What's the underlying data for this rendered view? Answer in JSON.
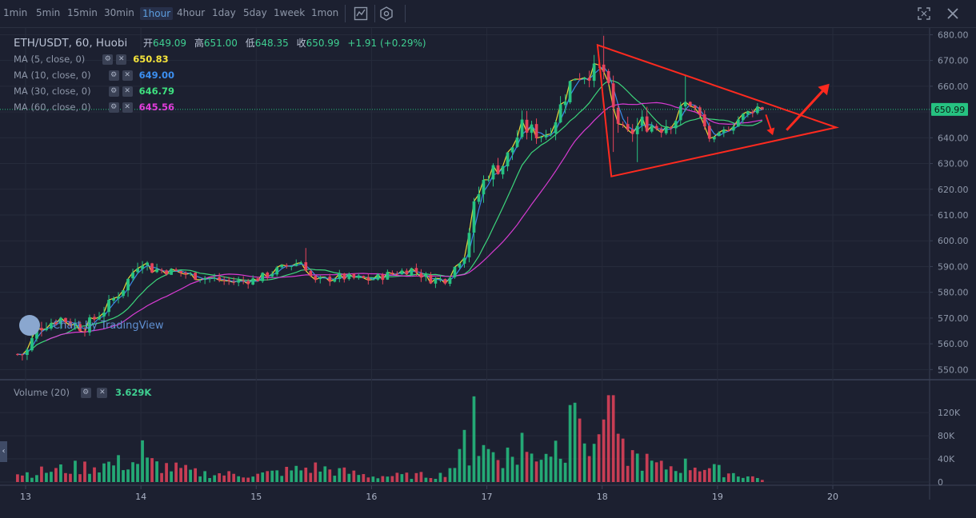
{
  "toolbar": {
    "timeframes": [
      "1min",
      "5min",
      "15min",
      "30min",
      "1hour",
      "4hour",
      "1day",
      "5day",
      "1week",
      "1mon"
    ],
    "active_timeframe": "1hour",
    "icons": [
      "indicator-icon",
      "settings-icon",
      "fullscreen-icon",
      "close-icon"
    ]
  },
  "legend": {
    "symbol": "ETH/USDT, 60, Huobi",
    "open_label": "开",
    "open": "649.09",
    "high_label": "高",
    "high": "651.00",
    "low_label": "低",
    "low": "648.35",
    "close_label": "收",
    "close": "650.99",
    "change": "+1.91 (+0.29%)"
  },
  "ma": [
    {
      "label": "MA (5, close, 0)",
      "value": "650.83",
      "color": "#f5e43b"
    },
    {
      "label": "MA (10, close, 0)",
      "value": "649.00",
      "color": "#3c8ff0"
    },
    {
      "label": "MA (30, close, 0)",
      "value": "646.79",
      "color": "#3ee07f"
    },
    {
      "label": "MA (60, close, 0)",
      "value": "645.56",
      "color": "#e23ddb"
    }
  ],
  "volume_legend": {
    "label": "Volume (20)",
    "value": "3.629K"
  },
  "watermark": "Chart by TradingView",
  "price_tag": "650.99",
  "colors": {
    "up": "#26c281",
    "down": "#e5435b",
    "background": "#1c2030",
    "annotation": "#ff2a1f"
  },
  "chart_data": {
    "type": "candlestick",
    "price_axis": {
      "ticks": [
        680,
        670,
        660,
        650,
        640,
        630,
        620,
        610,
        600,
        590,
        580,
        570,
        560,
        550
      ],
      "ylim": [
        547,
        682
      ]
    },
    "volume_axis": {
      "ticks": [
        "120K",
        "80K",
        "40K",
        "0"
      ],
      "values": [
        120000,
        80000,
        40000,
        0
      ],
      "ylim": [
        0,
        145000
      ]
    },
    "x_ticks": [
      "13",
      "14",
      "15",
      "16",
      "17",
      "18",
      "19",
      "20"
    ],
    "x_tick_days": [
      13,
      14,
      15,
      16,
      17,
      18,
      19,
      20
    ],
    "x_range": [
      13,
      21.1
    ],
    "last_price": 650.99,
    "price_path": [
      {
        "x": 13.0,
        "y": 556
      },
      {
        "x": 13.1,
        "y": 566
      },
      {
        "x": 13.3,
        "y": 570
      },
      {
        "x": 13.5,
        "y": 566
      },
      {
        "x": 13.7,
        "y": 574
      },
      {
        "x": 13.85,
        "y": 582
      },
      {
        "x": 14.0,
        "y": 593
      },
      {
        "x": 14.1,
        "y": 589
      },
      {
        "x": 14.3,
        "y": 588
      },
      {
        "x": 14.5,
        "y": 586
      },
      {
        "x": 14.8,
        "y": 584
      },
      {
        "x": 15.0,
        "y": 585
      },
      {
        "x": 15.25,
        "y": 590
      },
      {
        "x": 15.4,
        "y": 592
      },
      {
        "x": 15.5,
        "y": 584
      },
      {
        "x": 15.7,
        "y": 586
      },
      {
        "x": 16.0,
        "y": 585
      },
      {
        "x": 16.15,
        "y": 587
      },
      {
        "x": 16.35,
        "y": 589
      },
      {
        "x": 16.5,
        "y": 585
      },
      {
        "x": 16.65,
        "y": 585
      },
      {
        "x": 16.8,
        "y": 595
      },
      {
        "x": 16.9,
        "y": 615
      },
      {
        "x": 17.0,
        "y": 626
      },
      {
        "x": 17.15,
        "y": 630
      },
      {
        "x": 17.3,
        "y": 644
      },
      {
        "x": 17.5,
        "y": 641
      },
      {
        "x": 17.6,
        "y": 648
      },
      {
        "x": 17.75,
        "y": 664
      },
      {
        "x": 17.95,
        "y": 666
      },
      {
        "x": 18.0,
        "y": 668
      },
      {
        "x": 18.1,
        "y": 650
      },
      {
        "x": 18.2,
        "y": 640
      },
      {
        "x": 18.35,
        "y": 646
      },
      {
        "x": 18.5,
        "y": 644
      },
      {
        "x": 18.65,
        "y": 648
      },
      {
        "x": 18.75,
        "y": 655
      },
      {
        "x": 18.85,
        "y": 648
      },
      {
        "x": 18.95,
        "y": 638
      },
      {
        "x": 19.05,
        "y": 642
      },
      {
        "x": 19.2,
        "y": 648
      },
      {
        "x": 19.35,
        "y": 652
      },
      {
        "x": 19.42,
        "y": 650.99
      }
    ],
    "volume_path": [
      {
        "x": 13.0,
        "y": 15000
      },
      {
        "x": 13.7,
        "y": 30000
      },
      {
        "x": 14.0,
        "y": 35000
      },
      {
        "x": 14.5,
        "y": 15000
      },
      {
        "x": 15.0,
        "y": 12000
      },
      {
        "x": 15.5,
        "y": 25000
      },
      {
        "x": 16.0,
        "y": 10000
      },
      {
        "x": 16.6,
        "y": 12000
      },
      {
        "x": 16.9,
        "y": 60000
      },
      {
        "x": 17.3,
        "y": 40000
      },
      {
        "x": 17.75,
        "y": 75000
      },
      {
        "x": 18.0,
        "y": 65000
      },
      {
        "x": 18.2,
        "y": 50000
      },
      {
        "x": 18.5,
        "y": 25000
      },
      {
        "x": 18.8,
        "y": 30000
      },
      {
        "x": 19.0,
        "y": 20000
      },
      {
        "x": 19.42,
        "y": 4000
      }
    ],
    "volume_spikes": [
      {
        "x": 14.0,
        "y": 72000
      },
      {
        "x": 16.9,
        "y": 148000
      },
      {
        "x": 17.72,
        "y": 133000
      },
      {
        "x": 17.75,
        "y": 137000
      },
      {
        "x": 18.0,
        "y": 108000
      },
      {
        "x": 18.08,
        "y": 150000
      },
      {
        "x": 16.82,
        "y": 90000
      },
      {
        "x": 17.32,
        "y": 85000
      }
    ],
    "ma_series": [
      {
        "name": "MA (5, close, 0)",
        "color": "#f5e43b",
        "lag": 0.06
      },
      {
        "name": "MA (10, close, 0)",
        "color": "#3c8ff0",
        "lag": 0.14
      },
      {
        "name": "MA (30, close, 0)",
        "color": "#3ee07f",
        "lag": 0.45
      },
      {
        "name": "MA (60, close, 0)",
        "color": "#e23ddb",
        "lag": 0.9
      }
    ],
    "annotations": {
      "triangle": [
        {
          "x": 17.96,
          "y": 676
        },
        {
          "x": 20.03,
          "y": 644
        },
        {
          "x": 18.08,
          "y": 625
        }
      ],
      "arrow_up": {
        "from": {
          "x": 19.6,
          "y": 643
        },
        "to": {
          "x": 19.97,
          "y": 661
        }
      },
      "arrow_down": {
        "from": {
          "x": 19.42,
          "y": 649
        },
        "to": {
          "x": 19.48,
          "y": 641
        }
      }
    }
  }
}
